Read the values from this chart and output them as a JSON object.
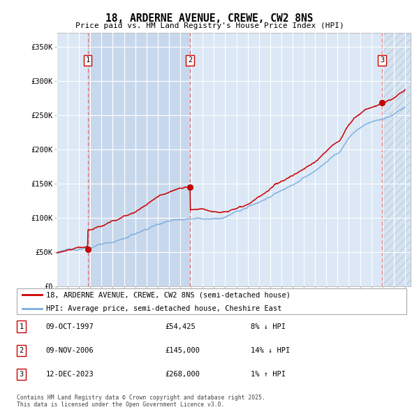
{
  "title": "18, ARDERNE AVENUE, CREWE, CW2 8NS",
  "subtitle": "Price paid vs. HM Land Registry's House Price Index (HPI)",
  "ylabel_ticks": [
    "£0",
    "£50K",
    "£100K",
    "£150K",
    "£200K",
    "£250K",
    "£300K",
    "£350K"
  ],
  "ytick_values": [
    0,
    50000,
    100000,
    150000,
    200000,
    250000,
    300000,
    350000
  ],
  "ylim": [
    0,
    370000
  ],
  "xlim_start": 1995.0,
  "xlim_end": 2026.5,
  "sale_dates": [
    1997.77,
    2006.86,
    2023.95
  ],
  "sale_prices": [
    54425,
    145000,
    268000
  ],
  "sale_labels": [
    "1",
    "2",
    "3"
  ],
  "transaction_details": [
    {
      "label": "1",
      "date": "09-OCT-1997",
      "price": "£54,425",
      "hpi_note": "8% ↓ HPI"
    },
    {
      "label": "2",
      "date": "09-NOV-2006",
      "price": "£145,000",
      "hpi_note": "14% ↓ HPI"
    },
    {
      "label": "3",
      "date": "12-DEC-2023",
      "price": "£268,000",
      "hpi_note": "1% ↑ HPI"
    }
  ],
  "legend_entries": [
    {
      "label": "18, ARDERNE AVENUE, CREWE, CW2 8NS (semi-detached house)",
      "color": "#cc0000"
    },
    {
      "label": "HPI: Average price, semi-detached house, Cheshire East",
      "color": "#7aabe0"
    }
  ],
  "footer": "Contains HM Land Registry data © Crown copyright and database right 2025.\nThis data is licensed under the Open Government Licence v3.0.",
  "bg_color": "#ffffff",
  "plot_bg_color": "#dce8f5",
  "grid_color": "#ffffff",
  "red_line_color": "#cc0000",
  "blue_line_color": "#7aabe0",
  "dashed_vline_color": "#e06060",
  "sale_marker_color": "#cc0000",
  "shade_between_1_2_color": "#c5d8ee",
  "hatch_color": "#c0d0e0"
}
